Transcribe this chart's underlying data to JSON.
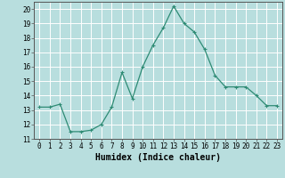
{
  "x": [
    0,
    1,
    2,
    3,
    4,
    5,
    6,
    7,
    8,
    9,
    10,
    11,
    12,
    13,
    14,
    15,
    16,
    17,
    18,
    19,
    20,
    21,
    22,
    23
  ],
  "y": [
    13.2,
    13.2,
    13.4,
    11.5,
    11.5,
    11.6,
    12.0,
    13.2,
    15.6,
    13.8,
    16.0,
    17.5,
    18.7,
    20.2,
    19.0,
    18.4,
    17.2,
    15.4,
    14.6,
    14.6,
    14.6,
    14.0,
    13.3,
    13.3
  ],
  "xlabel": "Humidex (Indice chaleur)",
  "ylabel": "",
  "ylim": [
    11,
    20.5
  ],
  "xlim": [
    -0.5,
    23.5
  ],
  "yticks": [
    11,
    12,
    13,
    14,
    15,
    16,
    17,
    18,
    19,
    20
  ],
  "xticks": [
    0,
    1,
    2,
    3,
    4,
    5,
    6,
    7,
    8,
    9,
    10,
    11,
    12,
    13,
    14,
    15,
    16,
    17,
    18,
    19,
    20,
    21,
    22,
    23
  ],
  "line_color": "#2e8b74",
  "marker": "+",
  "bg_color": "#b8dede",
  "grid_color": "#ffffff",
  "font_color": "#000000",
  "tick_fontsize": 5.5,
  "xlabel_fontsize": 7.0
}
